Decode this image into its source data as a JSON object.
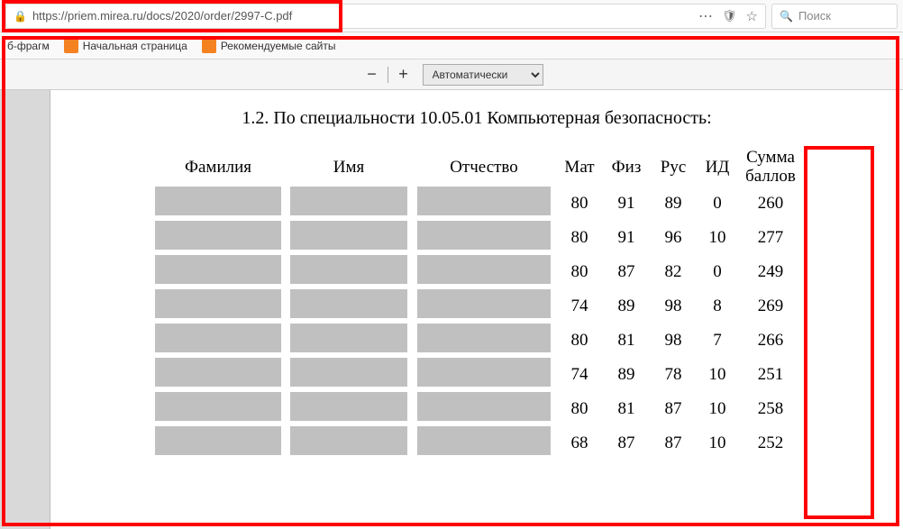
{
  "browser": {
    "url": "https://priem.mirea.ru/docs/2020/order/2997-C.pdf",
    "search_placeholder": "Поиск"
  },
  "bookmarks": {
    "item1": "б-фрагм",
    "item2": "Начальная страница",
    "item3": "Рекомендуемые сайты"
  },
  "pdf_toolbar": {
    "zoom_label": "Автоматически"
  },
  "document": {
    "heading": "1.2. По специальности 10.05.01 Компьютерная безопасность:"
  },
  "table": {
    "headers": {
      "surname": "Фамилия",
      "name": "Имя",
      "patronymic": "Отчество",
      "mat": "Мат",
      "phys": "Физ",
      "rus": "Рус",
      "id": "ИД",
      "sum1": "Сумма",
      "sum2": "баллов"
    },
    "rows": [
      {
        "mat": "80",
        "phys": "91",
        "rus": "89",
        "id": "0",
        "sum": "260"
      },
      {
        "mat": "80",
        "phys": "91",
        "rus": "96",
        "id": "10",
        "sum": "277"
      },
      {
        "mat": "80",
        "phys": "87",
        "rus": "82",
        "id": "0",
        "sum": "249"
      },
      {
        "mat": "74",
        "phys": "89",
        "rus": "98",
        "id": "8",
        "sum": "269"
      },
      {
        "mat": "80",
        "phys": "81",
        "rus": "98",
        "id": "7",
        "sum": "266"
      },
      {
        "mat": "74",
        "phys": "89",
        "rus": "78",
        "id": "10",
        "sum": "251"
      },
      {
        "mat": "80",
        "phys": "81",
        "rus": "87",
        "id": "10",
        "sum": "258"
      },
      {
        "mat": "68",
        "phys": "87",
        "rus": "87",
        "id": "10",
        "sum": "252"
      }
    ]
  },
  "visual": {
    "redaction_color": "#c0c0c0",
    "highlight_color": "#ff0000",
    "bookmark_icon_colors": [
      "#f58220",
      "#f58220"
    ]
  }
}
